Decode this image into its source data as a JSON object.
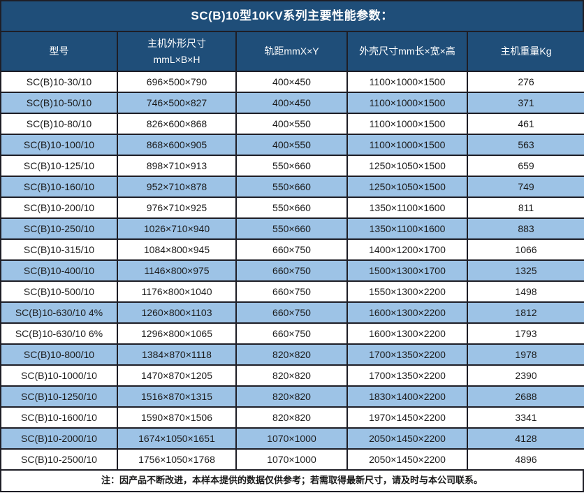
{
  "title": "SC(B)10型10KV系列主要性能参数：",
  "colors": {
    "header_bg": "#1F4E79",
    "alt_row_bg": "#9DC3E6",
    "border": "#1e1e26",
    "header_text": "#ffffff",
    "body_text": "#1a1a1a"
  },
  "table": {
    "columns": [
      {
        "key": "model",
        "label": "型号"
      },
      {
        "key": "host_size",
        "label": "主机外形尺寸",
        "label2": "mmL×B×H"
      },
      {
        "key": "rail",
        "label": "轨距mmX×Y"
      },
      {
        "key": "shell_size",
        "label": "外壳尺寸mm长×宽×高"
      },
      {
        "key": "weight",
        "label": "主机重量Kg"
      }
    ],
    "rows": [
      [
        "SC(B)10-30/10",
        "696×500×790",
        "400×450",
        "1100×1000×1500",
        "276"
      ],
      [
        "SC(B)10-50/10",
        "746×500×827",
        "400×450",
        "1100×1000×1500",
        "371"
      ],
      [
        "SC(B)10-80/10",
        "826×600×868",
        "400×550",
        "1100×1000×1500",
        "461"
      ],
      [
        "SC(B)10-100/10",
        "868×600×905",
        "400×550",
        "1100×1000×1500",
        "563"
      ],
      [
        "SC(B)10-125/10",
        "898×710×913",
        "550×660",
        "1250×1050×1500",
        "659"
      ],
      [
        "SC(B)10-160/10",
        "952×710×878",
        "550×660",
        "1250×1050×1500",
        "749"
      ],
      [
        "SC(B)10-200/10",
        "976×710×925",
        "550×660",
        "1350×1100×1600",
        "811"
      ],
      [
        "SC(B)10-250/10",
        "1026×710×940",
        "550×660",
        "1350×1100×1600",
        "883"
      ],
      [
        "SC(B)10-315/10",
        "1084×800×945",
        "660×750",
        "1400×1200×1700",
        "1066"
      ],
      [
        "SC(B)10-400/10",
        "1146×800×975",
        "660×750",
        "1500×1300×1700",
        "1325"
      ],
      [
        "SC(B)10-500/10",
        "1176×800×1040",
        "660×750",
        "1550×1300×2200",
        "1498"
      ],
      [
        "SC(B)10-630/10 4%",
        "1260×800×1103",
        "660×750",
        "1600×1300×2200",
        "1812"
      ],
      [
        "SC(B)10-630/10 6%",
        "1296×800×1065",
        "660×750",
        "1600×1300×2200",
        "1793"
      ],
      [
        "SC(B)10-800/10",
        "1384×870×1118",
        "820×820",
        "1700×1350×2200",
        "1978"
      ],
      [
        "SC(B)10-1000/10",
        "1470×870×1205",
        "820×820",
        "1700×1350×2200",
        "2390"
      ],
      [
        "SC(B)10-1250/10",
        "1516×870×1315",
        "820×820",
        "1830×1400×2200",
        "2688"
      ],
      [
        "SC(B)10-1600/10",
        "1590×870×1506",
        "820×820",
        "1970×1450×2200",
        "3341"
      ],
      [
        "SC(B)10-2000/10",
        "1674×1050×1651",
        "1070×1000",
        "2050×1450×2200",
        "4128"
      ],
      [
        "SC(B)10-2500/10",
        "1756×1050×1768",
        "1070×1000",
        "2050×1450×2200",
        "4896"
      ]
    ]
  },
  "footer": {
    "note": "注：因产品不断改进，本样本提供的数据仅供参考；若需取得最新尺寸，请及时与本公司联系。"
  }
}
